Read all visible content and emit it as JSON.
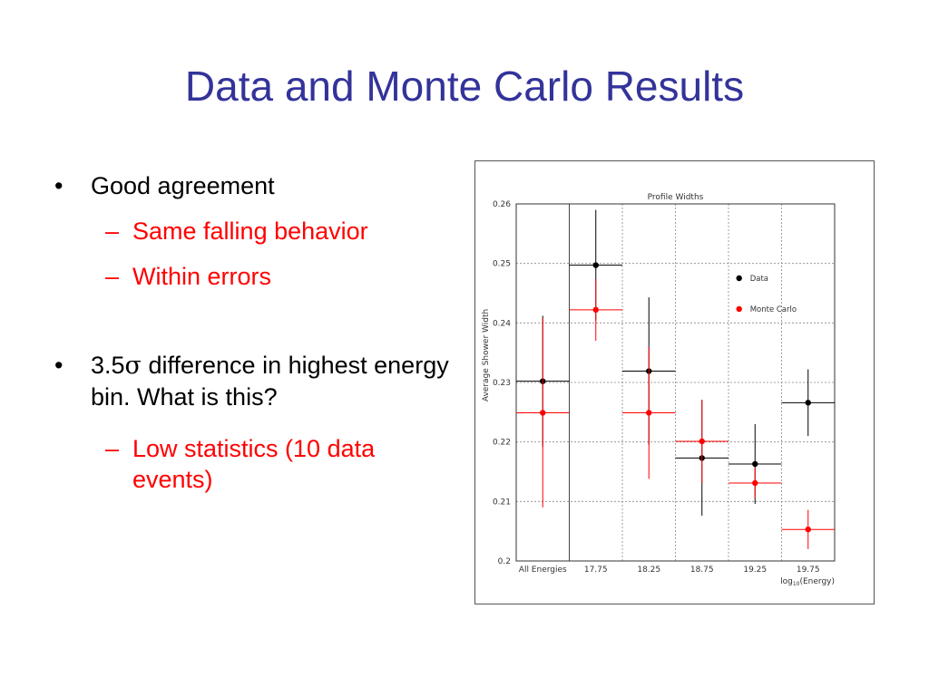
{
  "slide": {
    "title": "Data and Monte Carlo Results",
    "bullets": [
      {
        "text_before": "Good agreement",
        "sub": [
          "Same falling behavior",
          "Within errors"
        ]
      },
      {
        "text_before": "3.5",
        "sigma": "σ",
        "text_after": " difference in highest energy bin.  What is this?",
        "sub": [
          "Low statistics (10 data events)"
        ]
      }
    ],
    "colors": {
      "title": "#33339a",
      "sub_bullet": "#ff0000"
    }
  },
  "chart_data": {
    "type": "scatter",
    "title": "Profile Widths",
    "ylabel": "Average Shower Width",
    "xlabel_main": "log",
    "xlabel_sub": "10",
    "xlabel_suffix": "(Energy)",
    "categories": [
      "All Energies",
      "17.75",
      "18.25",
      "18.75",
      "19.25",
      "19.75"
    ],
    "yticks": [
      "0.2",
      "0.21",
      "0.22",
      "0.23",
      "0.24",
      "0.25",
      "0.26"
    ],
    "ylim": [
      0.2,
      0.26
    ],
    "grid": true,
    "legend_position": "top-right",
    "series": [
      {
        "name": "Data",
        "color": "#000000",
        "values": [
          0.2302,
          0.2497,
          0.2319,
          0.2173,
          0.2163,
          0.2266
        ],
        "errors": [
          0.011,
          0.0093,
          0.0124,
          0.0097,
          0.0067,
          0.0056
        ]
      },
      {
        "name": "Monte Carlo",
        "color": "#ff0000",
        "values": [
          0.2249,
          0.2422,
          0.2249,
          0.2201,
          0.2131,
          0.2053
        ],
        "errors": [
          0.0159,
          0.0052,
          0.0111,
          0.007,
          0.0026,
          0.0033
        ]
      }
    ]
  }
}
